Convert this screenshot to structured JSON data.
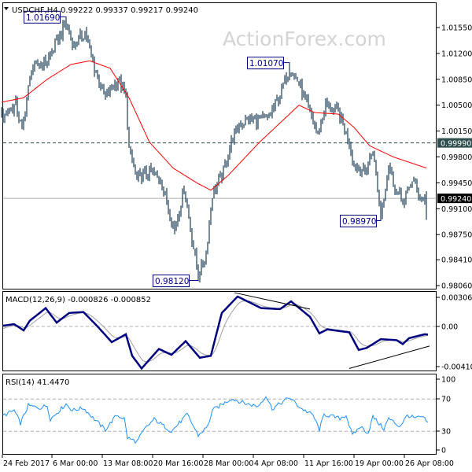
{
  "header": {
    "symbol": "USDCHF,H4",
    "ohlc": "0.99222 0.99337 0.99217 0.99240",
    "menu_icon": "triangle-down-icon"
  },
  "watermark": "ActionForex.com",
  "colors": {
    "bars": "#1b3d57",
    "ma": "#ff0000",
    "macd": "#000080",
    "signal": "#a0a0a0",
    "rsi": "#1e90ff",
    "label_border": "#000080",
    "level_bg": "#2f4f4f",
    "price_bg": "#000000"
  },
  "chart_data": [
    {
      "type": "line",
      "panel": "price",
      "title": "USDCHF,H4",
      "ylim": [
        0.9806,
        1.017
      ],
      "yticks": [
        "1.01550",
        "1.01200",
        "1.00850",
        "1.00500",
        "1.00150",
        "0.99800",
        "0.99450",
        "0.99100",
        "0.98750",
        "0.98410",
        "0.98060"
      ],
      "ytick_values": [
        1.0155,
        1.012,
        1.0085,
        1.005,
        1.0015,
        0.998,
        0.9945,
        0.991,
        0.9875,
        0.9841,
        0.9806
      ],
      "xticks": [
        "24 Feb 2017",
        "6 Mar 00:00",
        "13 Mar 08:00",
        "20 Mar 16:00",
        "28 Mar 00:00",
        "4 Apr 08:00",
        "11 Apr 16:00",
        "19 Apr 00:00",
        "26 Apr 08:00"
      ],
      "xtick_dates": [
        "2017-02-24 16:00",
        "2017-03-06 00:00",
        "2017-03-13 08:00",
        "2017-03-20 16:00",
        "2017-03-28 00:00",
        "2017-04-04 08:00",
        "2017-04-11 16:00",
        "2017-04-19 00:00",
        "2017-04-26 08:00"
      ],
      "horizontal_levels": [
        {
          "value": 0.9999,
          "label": "0.99990",
          "style": "dashed"
        },
        {
          "value": 0.9924,
          "label": "0.99240",
          "style": "current-price"
        }
      ],
      "annotations": [
        {
          "label": "1.01690",
          "value": 1.0169,
          "x": "2017-03-07 12:00",
          "kind": "high"
        },
        {
          "label": "0.98120",
          "value": 0.9812,
          "x": "2017-03-27 12:00",
          "kind": "low"
        },
        {
          "label": "1.01070",
          "value": 1.0107,
          "x": "2017-04-10 04:00",
          "kind": "high"
        },
        {
          "label": "0.98970",
          "value": 0.9897,
          "x": "2017-04-21 20:00",
          "kind": "low"
        }
      ],
      "series": [
        {
          "kind": "price-bars",
          "points": [
            [
              "2017-02-24 16:00",
              1.0035
            ],
            [
              "2017-02-28 04:00",
              1.005
            ],
            [
              "2017-02-28 20:00",
              1.0015
            ],
            [
              "2017-03-01 20:00",
              1.01
            ],
            [
              "2017-03-03 12:00",
              1.011
            ],
            [
              "2017-03-07 12:00",
              1.016
            ],
            [
              "2017-03-08 08:00",
              1.013
            ],
            [
              "2017-03-09 12:00",
              1.015
            ],
            [
              "2017-03-10 12:00",
              1.01
            ],
            [
              "2017-03-13 16:00",
              1.006
            ],
            [
              "2017-03-15 00:00",
              1.0085
            ],
            [
              "2017-03-15 20:00",
              1.006
            ],
            [
              "2017-03-16 04:00",
              0.999
            ],
            [
              "2017-03-17 00:00",
              0.995
            ],
            [
              "2017-03-20 08:00",
              0.996
            ],
            [
              "2017-03-21 12:00",
              0.995
            ],
            [
              "2017-03-22 08:00",
              0.991
            ],
            [
              "2017-03-23 00:00",
              0.988
            ],
            [
              "2017-03-24 00:00",
              0.994
            ],
            [
              "2017-03-24 20:00",
              0.987
            ],
            [
              "2017-03-27 12:00",
              0.982
            ],
            [
              "2017-03-28 08:00",
              0.985
            ],
            [
              "2017-03-29 00:00",
              0.993
            ],
            [
              "2017-03-30 04:00",
              0.996
            ],
            [
              "2017-03-31 00:00",
              1.0
            ],
            [
              "2017-03-31 20:00",
              1.0025
            ],
            [
              "2017-04-04 04:00",
              1.003
            ],
            [
              "2017-04-05 20:00",
              1.003
            ],
            [
              "2017-04-07 00:00",
              1.006
            ],
            [
              "2017-04-10 04:00",
              1.01
            ],
            [
              "2017-04-11 04:00",
              1.008
            ],
            [
              "2017-04-12 08:00",
              1.004
            ],
            [
              "2017-04-13 04:00",
              1.001
            ],
            [
              "2017-04-14 00:00",
              1.005
            ],
            [
              "2017-04-17 08:00",
              1.004
            ],
            [
              "2017-04-18 12:00",
              1.0
            ],
            [
              "2017-04-19 00:00",
              0.997
            ],
            [
              "2017-04-20 04:00",
              0.996
            ],
            [
              "2017-04-21 00:00",
              0.999
            ],
            [
              "2017-04-21 20:00",
              0.99
            ],
            [
              "2017-04-24 16:00",
              0.997
            ],
            [
              "2017-04-25 12:00",
              0.993
            ],
            [
              "2017-04-26 08:00",
              0.992
            ],
            [
              "2017-04-27 04:00",
              0.995
            ],
            [
              "2017-04-28 00:00",
              0.9925
            ],
            [
              "2017-04-28 16:00",
              0.9924
            ]
          ]
        },
        {
          "kind": "moving-average",
          "points": [
            [
              "2017-02-24 16:00",
              1.0054
            ],
            [
              "2017-03-01 00:00",
              1.006
            ],
            [
              "2017-03-03 12:00",
              1.0085
            ],
            [
              "2017-03-08 00:00",
              1.0105
            ],
            [
              "2017-03-10 00:00",
              1.011
            ],
            [
              "2017-03-14 04:00",
              1.01
            ],
            [
              "2017-03-16 04:00",
              1.006
            ],
            [
              "2017-03-20 08:00",
              1.0
            ],
            [
              "2017-03-22 20:00",
              0.9965
            ],
            [
              "2017-03-27 08:00",
              0.9945
            ],
            [
              "2017-03-28 20:00",
              0.9935
            ],
            [
              "2017-03-30 16:00",
              0.9955
            ],
            [
              "2017-04-05 00:00",
              1.0
            ],
            [
              "2017-04-07 12:00",
              1.003
            ],
            [
              "2017-04-11 04:00",
              1.005
            ],
            [
              "2017-04-12 20:00",
              1.004
            ],
            [
              "2017-04-17 08:00",
              1.0038
            ],
            [
              "2017-04-19 00:00",
              1.002
            ],
            [
              "2017-04-20 16:00",
              0.9995
            ],
            [
              "2017-04-25 04:00",
              0.998
            ],
            [
              "2017-04-28 16:00",
              0.9965
            ]
          ]
        }
      ]
    },
    {
      "type": "line",
      "panel": "macd",
      "label": "MACD(12,26,9) -0.000826 -0.000852",
      "ylim": [
        -0.004104,
        0.003063
      ],
      "yticks": [
        "0.003063",
        "0.00",
        "-0.004104"
      ],
      "ytick_values": [
        0.003063,
        0,
        -0.004104
      ],
      "series": [
        {
          "kind": "macd",
          "points": [
            [
              "2017-02-24 20:00",
              8e-05
            ],
            [
              "2017-02-28 00:00",
              0.00024
            ],
            [
              "2017-03-01 00:00",
              -0.0004
            ],
            [
              "2017-03-01 16:00",
              0.0006
            ],
            [
              "2017-03-03 08:00",
              0.0019
            ],
            [
              "2017-03-06 12:00",
              0.0004
            ],
            [
              "2017-03-07 20:00",
              0.0014
            ],
            [
              "2017-03-09 08:00",
              0.0015
            ],
            [
              "2017-03-10 20:00",
              0.0
            ],
            [
              "2017-03-14 08:00",
              -0.0016
            ],
            [
              "2017-03-15 20:00",
              -0.0008
            ],
            [
              "2017-03-16 12:00",
              -0.003
            ],
            [
              "2017-03-17 12:00",
              -0.0043
            ],
            [
              "2017-03-21 08:00",
              -0.0023
            ],
            [
              "2017-03-22 16:00",
              -0.0029
            ],
            [
              "2017-03-24 04:00",
              -0.0015
            ],
            [
              "2017-03-27 16:00",
              -0.0032
            ],
            [
              "2017-03-28 20:00",
              -0.003
            ],
            [
              "2017-03-30 00:00",
              0.0014
            ],
            [
              "2017-03-31 16:00",
              0.0031
            ],
            [
              "2017-04-05 04:00",
              0.0019
            ],
            [
              "2017-04-07 04:00",
              0.0018
            ],
            [
              "2017-04-10 08:00",
              0.0026
            ],
            [
              "2017-04-12 08:00",
              0.001
            ],
            [
              "2017-04-13 08:00",
              -0.0007
            ],
            [
              "2017-04-14 04:00",
              -0.0003
            ],
            [
              "2017-04-18 12:00",
              -0.0006
            ],
            [
              "2017-04-19 12:00",
              -0.0024
            ],
            [
              "2017-04-20 08:00",
              -0.0022
            ],
            [
              "2017-04-21 20:00",
              -0.0013
            ],
            [
              "2017-04-25 12:00",
              -0.0014
            ],
            [
              "2017-04-26 04:00",
              -0.0018
            ],
            [
              "2017-04-26 20:00",
              -0.0012
            ],
            [
              "2017-04-28 12:00",
              -0.0008
            ],
            [
              "2017-04-28 20:00",
              -0.000826
            ]
          ]
        },
        {
          "kind": "signal",
          "last_value": -0.000852
        }
      ],
      "trendlines": [
        {
          "from": [
            "2017-03-31 08:00",
            0.0035
          ],
          "to": [
            "2017-04-12 08:00",
            0.0018
          ]
        },
        {
          "from": [
            "2017-04-18 12:00",
            -0.0043
          ],
          "to": [
            "2017-05-01 00:00",
            -0.002
          ]
        }
      ]
    },
    {
      "type": "line",
      "panel": "rsi",
      "label": "RSI(14) 41.4470",
      "ylim": [
        0,
        100
      ],
      "yticks": [
        "100",
        "70",
        "30",
        "0"
      ],
      "ytick_values": [
        100,
        70,
        30,
        0
      ],
      "levels": [
        70,
        30
      ],
      "series": [
        {
          "kind": "rsi",
          "points": [
            [
              "2017-02-24 20:00",
              49.5
            ],
            [
              "2017-02-28 00:00",
              56
            ],
            [
              "2017-02-28 16:00",
              40
            ],
            [
              "2017-03-01 12:00",
              62
            ],
            [
              "2017-03-02 16:00",
              59
            ],
            [
              "2017-03-03 12:00",
              62
            ],
            [
              "2017-03-03 20:00",
              45
            ],
            [
              "2017-03-07 12:00",
              64
            ],
            [
              "2017-03-08 04:00",
              56
            ],
            [
              "2017-03-09 08:00",
              59
            ],
            [
              "2017-03-10 16:00",
              43
            ],
            [
              "2017-03-13 16:00",
              32
            ],
            [
              "2017-03-14 20:00",
              50
            ],
            [
              "2017-03-15 16:00",
              46
            ],
            [
              "2017-03-16 00:00",
              22
            ],
            [
              "2017-03-17 00:00",
              17
            ],
            [
              "2017-03-17 20:00",
              33
            ],
            [
              "2017-03-20 20:00",
              45
            ],
            [
              "2017-03-22 16:00",
              30
            ],
            [
              "2017-03-24 08:00",
              51
            ],
            [
              "2017-03-27 12:00",
              25
            ],
            [
              "2017-03-28 12:00",
              36
            ],
            [
              "2017-03-29 00:00",
              56
            ],
            [
              "2017-03-31 00:00",
              70.5
            ],
            [
              "2017-04-03 16:00",
              64
            ],
            [
              "2017-04-04 20:00",
              61
            ],
            [
              "2017-04-05 16:00",
              74
            ],
            [
              "2017-04-06 08:00",
              58
            ],
            [
              "2017-04-10 04:00",
              72
            ],
            [
              "2017-04-11 08:00",
              59
            ],
            [
              "2017-04-12 16:00",
              50
            ],
            [
              "2017-04-13 08:00",
              32
            ],
            [
              "2017-04-13 20:00",
              51
            ],
            [
              "2017-04-17 12:00",
              46
            ],
            [
              "2017-04-18 04:00",
              50
            ],
            [
              "2017-04-18 20:00",
              25
            ],
            [
              "2017-04-19 16:00",
              36
            ],
            [
              "2017-04-20 12:00",
              28
            ],
            [
              "2017-04-21 00:00",
              48
            ],
            [
              "2017-04-24 04:00",
              33
            ],
            [
              "2017-04-24 16:00",
              46
            ],
            [
              "2017-04-25 20:00",
              36
            ],
            [
              "2017-04-26 16:00",
              50
            ],
            [
              "2017-04-27 12:00",
              46
            ],
            [
              "2017-04-28 04:00",
              48
            ],
            [
              "2017-04-28 20:00",
              41.447
            ]
          ]
        }
      ]
    }
  ]
}
